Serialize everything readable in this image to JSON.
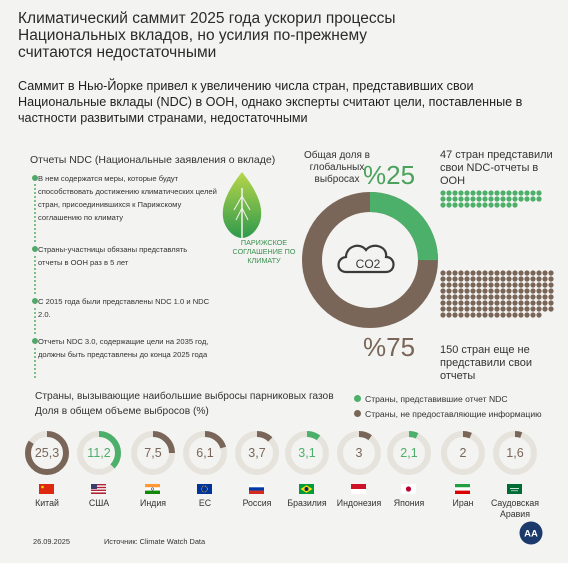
{
  "title": "Климатический саммит 2025 года ускорил процессы Национальных вкладов, но усилия по-прежнему считаются недостаточными",
  "subtitle": "Саммит в Нью-Йорке привел к увеличению числа стран, представивших свои Национальные вклады (NDC) в ООН, однако эксперты считают цели, поставленные в частности развитыми странами, недостаточными",
  "ndc_section": {
    "heading": "Отчеты NDC (Национальные заявления о вкладе)",
    "items": [
      "В нем содержатся меры, которые будут способствовать достижению климатических целей стран, присоединившихся к Парижскому соглашению по климату",
      "Страны-участницы обязаны представлять отчеты в ООН раз в 5 лет",
      "С 2015 года были представлены NDC 1.0 и NDC 2.0.",
      "Отчеты NDC 3.0, содержащие цели на 2035 год, должны быть представлены до конца 2025 года"
    ],
    "leaf_label": "ПАРИЖСКОЕ СОГЛАШЕНИЕ ПО КЛИМАТУ"
  },
  "emissions_share": {
    "label": "Общая доля в глобальных выбросах",
    "reported_pct": "%25",
    "not_reported_pct": "%75",
    "reported_value": 25,
    "center_label": "CO2"
  },
  "countries_counts": {
    "reported_text": "47 стран представили свои NDC-отчеты в ООН",
    "reported_count": 47,
    "not_reported_text": "150 стран еще не представили свои отчеты",
    "not_reported_count": 150
  },
  "emitters": {
    "title": "Страны, вызывающие наибольшие выбросы парниковых газов",
    "subtitle": "Доля в общем объеме выбросов (%)",
    "legend_reported": "Страны, представившие отчет NDC",
    "legend_not_reported": "Страны, не предоставляющие информацию",
    "colors": {
      "reported": "#4caf6a",
      "not_reported": "#7a6658",
      "track": "#e6e3dc"
    },
    "countries": [
      {
        "name": "Китай",
        "value": "25,3",
        "v": 25.3,
        "reported": false,
        "flag": "china"
      },
      {
        "name": "США",
        "value": "11,2",
        "v": 11.2,
        "reported": true,
        "flag": "usa"
      },
      {
        "name": "Индия",
        "value": "7,5",
        "v": 7.5,
        "reported": false,
        "flag": "india"
      },
      {
        "name": "ЕС",
        "value": "6,1",
        "v": 6.1,
        "reported": false,
        "flag": "eu"
      },
      {
        "name": "Россия",
        "value": "3,7",
        "v": 3.7,
        "reported": false,
        "flag": "russia"
      },
      {
        "name": "Бразилия",
        "value": "3,1",
        "v": 3.1,
        "reported": true,
        "flag": "brazil"
      },
      {
        "name": "Индонезия",
        "value": "3",
        "v": 3.0,
        "reported": false,
        "flag": "indonesia"
      },
      {
        "name": "Япония",
        "value": "2,1",
        "v": 2.1,
        "reported": true,
        "flag": "japan"
      },
      {
        "name": "Иран",
        "value": "2",
        "v": 2.0,
        "reported": false,
        "flag": "iran"
      },
      {
        "name": "Саудовская Аравия",
        "value": "1,6",
        "v": 1.6,
        "reported": false,
        "flag": "saudi"
      }
    ]
  },
  "footer": {
    "date": "26.09.2025",
    "source": "Источник: Climate Watch Data",
    "logo_text": "AA"
  }
}
